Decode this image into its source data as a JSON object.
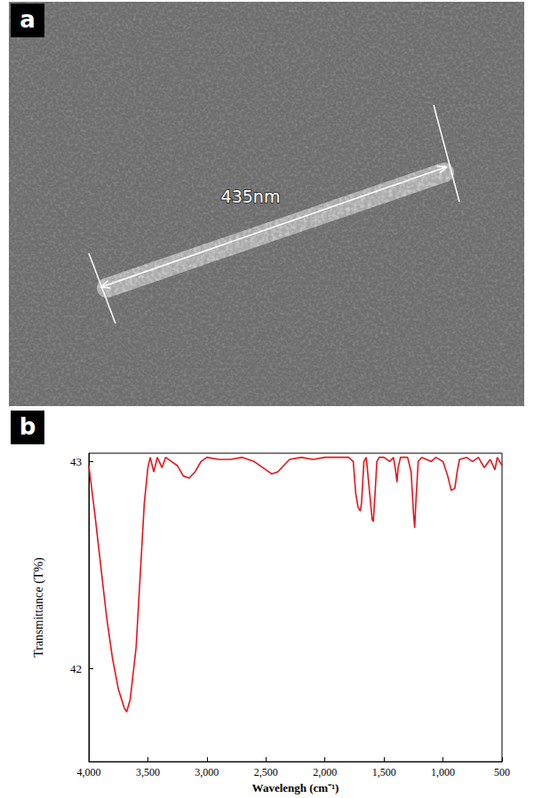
{
  "panels": [
    {
      "label": "a",
      "type": "image",
      "measurement_label": "435nm"
    }
  ],
  "chart_data": {
    "panel_label": "b",
    "type": "line",
    "x_label": "Wavelengh (cm⁻¹)",
    "y_label": "Transmittance (T%)",
    "x": [
      4000,
      3950,
      3900,
      3850,
      3800,
      3750,
      3700,
      3680,
      3650,
      3600,
      3560,
      3530,
      3500,
      3480,
      3450,
      3420,
      3380,
      3350,
      3300,
      3250,
      3200,
      3150,
      3100,
      3050,
      3000,
      2900,
      2800,
      2700,
      2600,
      2500,
      2450,
      2400,
      2350,
      2300,
      2200,
      2100,
      2000,
      1900,
      1800,
      1760,
      1740,
      1720,
      1700,
      1690,
      1670,
      1650,
      1630,
      1600,
      1590,
      1575,
      1560,
      1540,
      1500,
      1450,
      1420,
      1400,
      1390,
      1380,
      1360,
      1300,
      1270,
      1250,
      1240,
      1230,
      1210,
      1180,
      1100,
      1060,
      1000,
      960,
      930,
      900,
      880,
      860,
      800,
      750,
      700,
      650,
      600,
      560,
      540,
      520,
      500
    ],
    "values": [
      42.98,
      42.75,
      42.5,
      42.25,
      42.05,
      41.9,
      41.81,
      41.79,
      41.85,
      42.1,
      42.5,
      42.8,
      42.97,
      43.02,
      42.95,
      43.02,
      42.97,
      43.02,
      43.0,
      42.98,
      42.93,
      42.92,
      42.95,
      43.0,
      43.02,
      43.01,
      43.01,
      43.02,
      43.0,
      42.96,
      42.94,
      42.95,
      42.98,
      43.01,
      43.02,
      43.01,
      43.02,
      43.02,
      43.02,
      43.0,
      42.85,
      42.78,
      42.76,
      42.8,
      43.0,
      43.02,
      42.9,
      42.72,
      42.71,
      42.85,
      43.0,
      43.02,
      43.02,
      43.0,
      43.02,
      42.95,
      42.9,
      42.97,
      43.02,
      43.02,
      42.95,
      42.75,
      42.68,
      42.8,
      43.0,
      43.02,
      43.0,
      43.02,
      43.0,
      42.93,
      42.86,
      42.87,
      42.95,
      43.01,
      43.02,
      43.0,
      43.02,
      42.97,
      43.01,
      42.96,
      43.02,
      43.0,
      42.98
    ],
    "color": "#e8141a",
    "xlim": [
      4000,
      500
    ],
    "xticks": [
      4000,
      3500,
      3000,
      2500,
      2000,
      1500,
      1000,
      500
    ],
    "ylim": [
      41.55,
      43.04
    ],
    "yticks": [
      42,
      43
    ],
    "grid": false,
    "marker": "none",
    "line_style": "solid"
  }
}
